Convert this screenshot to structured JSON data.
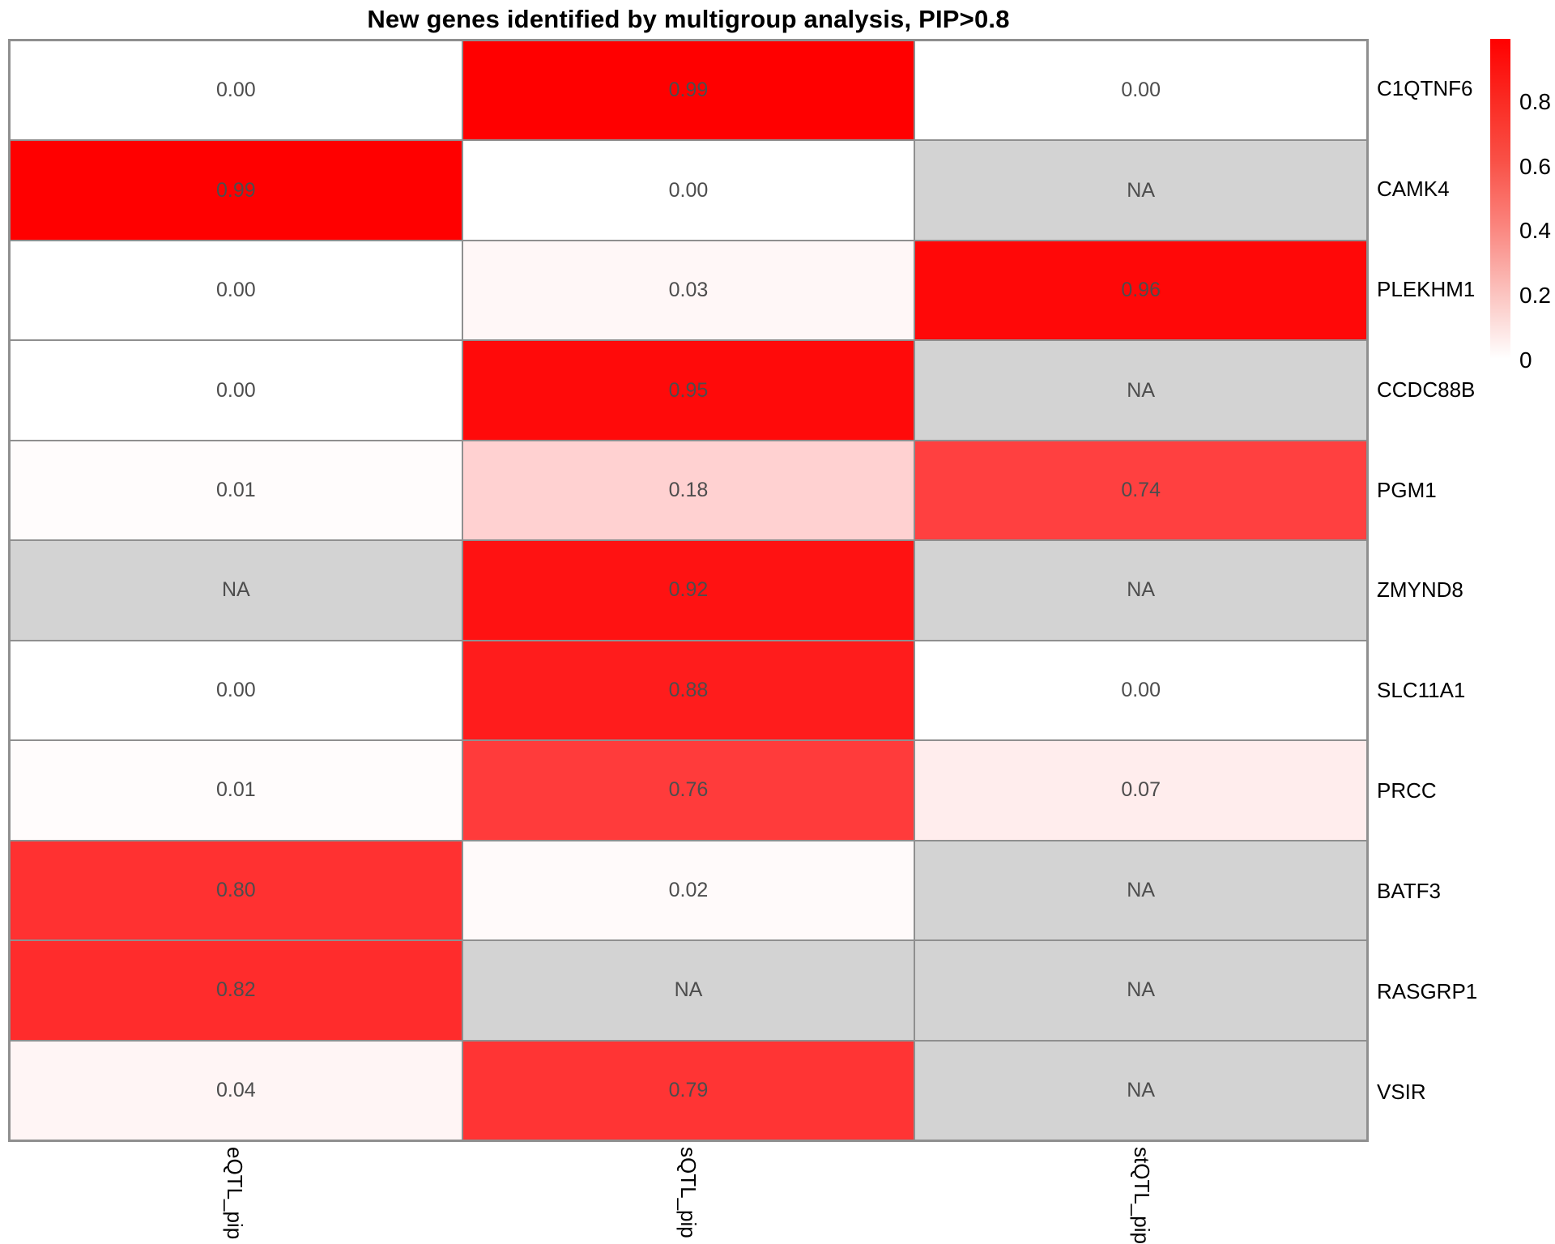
{
  "chart_data": {
    "type": "heatmap",
    "title": "New genes identified by multigroup analysis, PIP>0.8",
    "columns": [
      "eQTL_pip",
      "sQTL_pip",
      "stQTL_pip"
    ],
    "rows": [
      "C1QTNF6",
      "CAMK4",
      "PLEKHM1",
      "CCDC88B",
      "PGM1",
      "ZMYND8",
      "SLC11A1",
      "PRCC",
      "BATF3",
      "RASGRP1",
      "VSIR"
    ],
    "values": [
      [
        0.0,
        0.99,
        0.0
      ],
      [
        0.99,
        0.0,
        null
      ],
      [
        0.0,
        0.03,
        0.96
      ],
      [
        0.0,
        0.95,
        null
      ],
      [
        0.01,
        0.18,
        0.74
      ],
      [
        null,
        0.92,
        null
      ],
      [
        0.0,
        0.88,
        0.0
      ],
      [
        0.01,
        0.76,
        0.07
      ],
      [
        0.8,
        0.02,
        null
      ],
      [
        0.82,
        null,
        null
      ],
      [
        0.04,
        0.79,
        null
      ]
    ],
    "na_label": "NA",
    "value_decimals": 2,
    "colorscale": {
      "low": "#FFFFFF",
      "high": "#FF0000",
      "na": "#D3D3D3",
      "min": 0,
      "max": 0.99
    },
    "legend": {
      "position": "right",
      "ticks": [
        {
          "label": "0.8",
          "value": 0.8
        },
        {
          "label": "0.6",
          "value": 0.6
        },
        {
          "label": "0.4",
          "value": 0.4
        },
        {
          "label": "0.2",
          "value": 0.2
        },
        {
          "label": "0",
          "value": 0.0
        }
      ]
    },
    "grid": false,
    "styles": {
      "grid_line_color": "#8F8F8F",
      "cell_text_color": "#4D4D4D",
      "na_cell_color": "#D3D3D3",
      "high_color": "#FF0000"
    }
  }
}
